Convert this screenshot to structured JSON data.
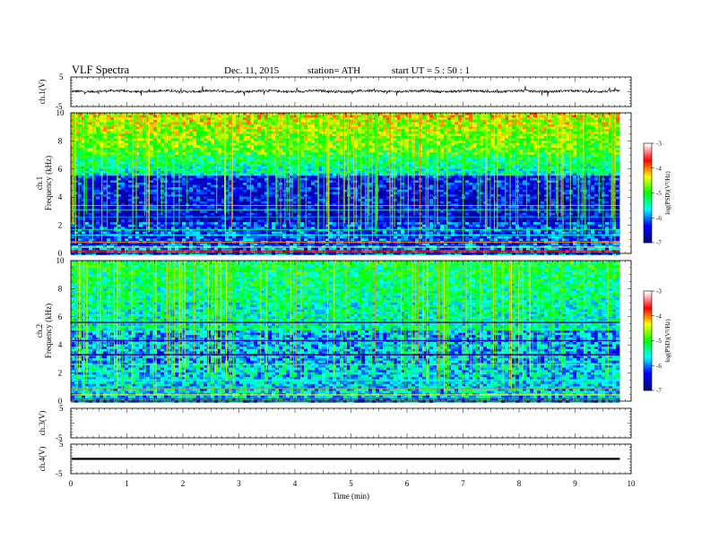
{
  "header": {
    "title": "VLF  Spectra",
    "date": "Dec. 11, 2015",
    "station": "station= ATH",
    "start": "start  UT  =   5   : 50 : 1"
  },
  "chart_data": [
    {
      "type": "line",
      "panel": "ch1-waveform",
      "ylabel": "ch.1(V)",
      "ylim": [
        -5,
        5
      ],
      "yticks": [
        "5",
        "-5"
      ],
      "xlim": [
        0,
        10
      ],
      "series_summary": {
        "mean": 0.2,
        "typical_amplitude": 0.5
      }
    },
    {
      "type": "heatmap",
      "panel": "ch1-spectrogram",
      "ylabel": [
        "ch.1",
        "Frequency  (kHz)"
      ],
      "ylim": [
        0,
        10
      ],
      "yticks": [
        "0",
        "2",
        "4",
        "6",
        "8",
        "10"
      ],
      "xlim": [
        0,
        9.8
      ],
      "colorbar": {
        "label": "log(PSD)(V²/Hz)",
        "range": [
          -7,
          -3
        ],
        "ticks": [
          "-3",
          "-4",
          "-5",
          "-6",
          "-7"
        ]
      }
    },
    {
      "type": "heatmap",
      "panel": "ch2-spectrogram",
      "ylabel": [
        "ch.2",
        "Frequency  (kHz)"
      ],
      "ylim": [
        0,
        10
      ],
      "yticks": [
        "0",
        "2",
        "4",
        "6",
        "8",
        "10"
      ],
      "xlim": [
        0,
        9.8
      ],
      "colorbar": {
        "label": "log(PSD)(V²/Hz)",
        "range": [
          -7,
          -3
        ],
        "ticks": [
          "-3",
          "-4",
          "-5",
          "-6",
          "-7"
        ]
      }
    },
    {
      "type": "line",
      "panel": "ch3-waveform",
      "ylabel": "ch.3(V)",
      "ylim": [
        -5,
        5
      ],
      "yticks": [
        "5",
        "-5"
      ],
      "series_summary": {
        "mean": null
      }
    },
    {
      "type": "line",
      "panel": "ch4-waveform",
      "ylabel": "ch.4(V)",
      "ylim": [
        -5,
        5
      ],
      "yticks": [
        "5",
        "-5"
      ],
      "series_summary": {
        "mean": 0,
        "typical_amplitude": 0.2
      }
    }
  ],
  "xaxis": {
    "label": "Time  (min)",
    "ticks": [
      "0",
      "1",
      "2",
      "3",
      "4",
      "5",
      "6",
      "7",
      "8",
      "9",
      "10"
    ],
    "range": [
      0,
      10
    ]
  },
  "colors": {
    "colormap": [
      "#000080",
      "#0000ff",
      "#00ffff",
      "#00ff00",
      "#ffff00",
      "#ff0000",
      "#ffffff"
    ]
  }
}
